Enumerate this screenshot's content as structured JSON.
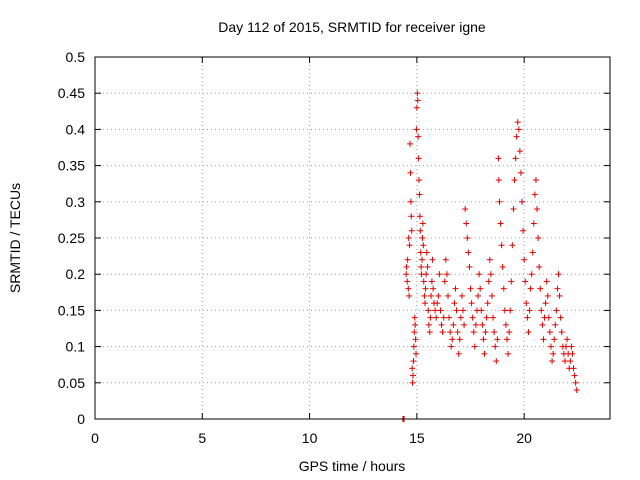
{
  "chart_data": {
    "type": "scatter",
    "title": "Day 112 of 2015, SRMTID for receiver igne",
    "xlabel": "GPS time / hours",
    "ylabel": "SRMTID / TECUs",
    "xlim": [
      0,
      24
    ],
    "ylim": [
      0,
      0.5
    ],
    "xticks": [
      0,
      5,
      10,
      15,
      20
    ],
    "xtick_labels": [
      "0",
      "5",
      "10",
      "15",
      "20"
    ],
    "yticks": [
      0,
      0.05,
      0.1,
      0.15,
      0.2,
      0.25,
      0.3,
      0.35,
      0.4,
      0.45,
      0.5
    ],
    "ytick_labels": [
      "0",
      "0.05",
      "0.1",
      "0.15",
      "0.2",
      "0.25",
      "0.3",
      "0.35",
      "0.4",
      "0.45",
      "0.5"
    ],
    "grid": true,
    "marker": "plus",
    "color": "#e00000",
    "series": [
      {
        "name": "SRMTID",
        "points": [
          [
            14.35,
            0.0
          ],
          [
            14.37,
            0.0
          ],
          [
            14.38,
            0.0
          ],
          [
            14.4,
            0.0
          ],
          [
            14.5,
            0.2
          ],
          [
            14.52,
            0.21
          ],
          [
            14.55,
            0.19
          ],
          [
            14.57,
            0.22
          ],
          [
            14.6,
            0.18
          ],
          [
            14.62,
            0.25
          ],
          [
            14.64,
            0.17
          ],
          [
            14.66,
            0.24
          ],
          [
            14.68,
            0.38
          ],
          [
            14.7,
            0.34
          ],
          [
            14.72,
            0.3
          ],
          [
            14.74,
            0.28
          ],
          [
            14.76,
            0.26
          ],
          [
            14.78,
            0.07
          ],
          [
            14.8,
            0.05
          ],
          [
            14.82,
            0.06
          ],
          [
            14.84,
            0.08
          ],
          [
            14.86,
            0.1
          ],
          [
            14.88,
            0.12
          ],
          [
            14.9,
            0.14
          ],
          [
            14.92,
            0.13
          ],
          [
            14.94,
            0.11
          ],
          [
            14.96,
            0.09
          ],
          [
            14.98,
            0.4
          ],
          [
            15.0,
            0.43
          ],
          [
            15.02,
            0.45
          ],
          [
            15.04,
            0.44
          ],
          [
            15.06,
            0.39
          ],
          [
            15.08,
            0.36
          ],
          [
            15.1,
            0.33
          ],
          [
            15.12,
            0.31
          ],
          [
            15.14,
            0.28
          ],
          [
            15.16,
            0.26
          ],
          [
            15.18,
            0.23
          ],
          [
            15.2,
            0.21
          ],
          [
            15.22,
            0.2
          ],
          [
            15.24,
            0.22
          ],
          [
            15.26,
            0.25
          ],
          [
            15.28,
            0.27
          ],
          [
            15.3,
            0.24
          ],
          [
            15.32,
            0.19
          ],
          [
            15.35,
            0.17
          ],
          [
            15.38,
            0.16
          ],
          [
            15.4,
            0.18
          ],
          [
            15.43,
            0.2
          ],
          [
            15.46,
            0.23
          ],
          [
            15.5,
            0.21
          ],
          [
            15.53,
            0.15
          ],
          [
            15.56,
            0.13
          ],
          [
            15.6,
            0.12
          ],
          [
            15.63,
            0.14
          ],
          [
            15.66,
            0.17
          ],
          [
            15.7,
            0.19
          ],
          [
            15.73,
            0.22
          ],
          [
            15.76,
            0.18
          ],
          [
            15.8,
            0.16
          ],
          [
            15.85,
            0.15
          ],
          [
            15.9,
            0.14
          ],
          [
            15.95,
            0.16
          ],
          [
            16.0,
            0.17
          ],
          [
            16.05,
            0.2
          ],
          [
            16.1,
            0.15
          ],
          [
            16.15,
            0.13
          ],
          [
            16.2,
            0.12
          ],
          [
            16.25,
            0.14
          ],
          [
            16.3,
            0.19
          ],
          [
            16.35,
            0.22
          ],
          [
            16.4,
            0.2
          ],
          [
            16.45,
            0.17
          ],
          [
            16.5,
            0.14
          ],
          [
            16.55,
            0.12
          ],
          [
            16.6,
            0.1
          ],
          [
            16.65,
            0.11
          ],
          [
            16.7,
            0.13
          ],
          [
            16.75,
            0.16
          ],
          [
            16.8,
            0.18
          ],
          [
            16.85,
            0.15
          ],
          [
            16.9,
            0.12
          ],
          [
            16.95,
            0.09
          ],
          [
            17.0,
            0.11
          ],
          [
            17.05,
            0.14
          ],
          [
            17.1,
            0.17
          ],
          [
            17.15,
            0.15
          ],
          [
            17.2,
            0.13
          ],
          [
            17.25,
            0.29
          ],
          [
            17.3,
            0.27
          ],
          [
            17.35,
            0.25
          ],
          [
            17.4,
            0.23
          ],
          [
            17.45,
            0.21
          ],
          [
            17.5,
            0.18
          ],
          [
            17.55,
            0.16
          ],
          [
            17.6,
            0.14
          ],
          [
            17.65,
            0.12
          ],
          [
            17.7,
            0.1
          ],
          [
            17.75,
            0.13
          ],
          [
            17.8,
            0.15
          ],
          [
            17.85,
            0.17
          ],
          [
            17.9,
            0.2
          ],
          [
            17.95,
            0.18
          ],
          [
            18.0,
            0.15
          ],
          [
            18.05,
            0.13
          ],
          [
            18.1,
            0.11
          ],
          [
            18.15,
            0.09
          ],
          [
            18.2,
            0.12
          ],
          [
            18.25,
            0.14
          ],
          [
            18.3,
            0.16
          ],
          [
            18.35,
            0.19
          ],
          [
            18.4,
            0.22
          ],
          [
            18.45,
            0.2
          ],
          [
            18.5,
            0.17
          ],
          [
            18.55,
            0.14
          ],
          [
            18.6,
            0.12
          ],
          [
            18.65,
            0.1
          ],
          [
            18.7,
            0.08
          ],
          [
            18.75,
            0.11
          ],
          [
            18.8,
            0.36
          ],
          [
            18.82,
            0.33
          ],
          [
            18.85,
            0.3
          ],
          [
            18.9,
            0.27
          ],
          [
            18.95,
            0.24
          ],
          [
            19.0,
            0.21
          ],
          [
            19.05,
            0.18
          ],
          [
            19.1,
            0.15
          ],
          [
            19.15,
            0.13
          ],
          [
            19.2,
            0.11
          ],
          [
            19.25,
            0.09
          ],
          [
            19.3,
            0.12
          ],
          [
            19.35,
            0.15
          ],
          [
            19.4,
            0.19
          ],
          [
            19.45,
            0.24
          ],
          [
            19.5,
            0.29
          ],
          [
            19.55,
            0.33
          ],
          [
            19.6,
            0.36
          ],
          [
            19.65,
            0.39
          ],
          [
            19.7,
            0.41
          ],
          [
            19.75,
            0.4
          ],
          [
            19.8,
            0.37
          ],
          [
            19.85,
            0.34
          ],
          [
            19.9,
            0.3
          ],
          [
            19.95,
            0.26
          ],
          [
            20.0,
            0.22
          ],
          [
            20.05,
            0.19
          ],
          [
            20.1,
            0.16
          ],
          [
            20.15,
            0.14
          ],
          [
            20.2,
            0.12
          ],
          [
            20.25,
            0.15
          ],
          [
            20.3,
            0.18
          ],
          [
            20.35,
            0.2
          ],
          [
            20.4,
            0.23
          ],
          [
            20.45,
            0.27
          ],
          [
            20.5,
            0.31
          ],
          [
            20.55,
            0.33
          ],
          [
            20.6,
            0.29
          ],
          [
            20.65,
            0.25
          ],
          [
            20.7,
            0.21
          ],
          [
            20.75,
            0.18
          ],
          [
            20.8,
            0.15
          ],
          [
            20.85,
            0.13
          ],
          [
            20.9,
            0.11
          ],
          [
            20.95,
            0.14
          ],
          [
            21.0,
            0.16
          ],
          [
            21.05,
            0.19
          ],
          [
            21.1,
            0.17
          ],
          [
            21.15,
            0.14
          ],
          [
            21.2,
            0.12
          ],
          [
            21.25,
            0.1
          ],
          [
            21.3,
            0.08
          ],
          [
            21.35,
            0.09
          ],
          [
            21.4,
            0.11
          ],
          [
            21.45,
            0.13
          ],
          [
            21.5,
            0.15
          ],
          [
            21.55,
            0.18
          ],
          [
            21.6,
            0.2
          ],
          [
            21.65,
            0.17
          ],
          [
            21.7,
            0.14
          ],
          [
            21.75,
            0.12
          ],
          [
            21.8,
            0.1
          ],
          [
            21.85,
            0.09
          ],
          [
            21.9,
            0.08
          ],
          [
            21.95,
            0.1
          ],
          [
            22.0,
            0.11
          ],
          [
            22.05,
            0.09
          ],
          [
            22.1,
            0.07
          ],
          [
            22.15,
            0.08
          ],
          [
            22.2,
            0.1
          ],
          [
            22.25,
            0.09
          ],
          [
            22.3,
            0.07
          ],
          [
            22.35,
            0.06
          ],
          [
            22.4,
            0.05
          ],
          [
            22.45,
            0.04
          ]
        ]
      }
    ]
  }
}
